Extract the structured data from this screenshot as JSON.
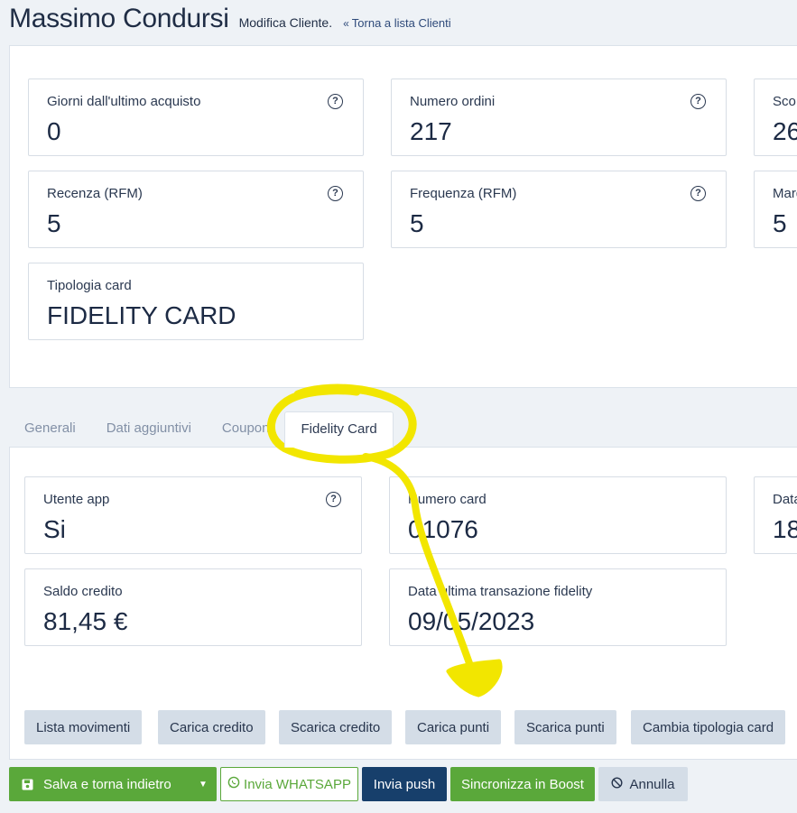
{
  "header": {
    "title": "Massimo Condursi",
    "subtitle": "Modifica Cliente.",
    "back_link": "Torna a lista Clienti",
    "back_icon": "«"
  },
  "summary_cards": [
    {
      "label": "Giorni dall'ultimo acquisto",
      "value": "0",
      "help": true
    },
    {
      "label": "Numero ordini",
      "value": "217",
      "help": true
    },
    {
      "label": "Sco",
      "value": "26"
    },
    {
      "label": "Recenza (RFM)",
      "value": "5",
      "help": true
    },
    {
      "label": "Frequenza (RFM)",
      "value": "5",
      "help": true
    },
    {
      "label": "Marg",
      "value": "5"
    },
    {
      "label": "Tipologia card",
      "value": "FIDELITY CARD"
    }
  ],
  "tabs": [
    {
      "label": "Generali"
    },
    {
      "label": "Dati aggiuntivi"
    },
    {
      "label": "Coupon"
    },
    {
      "label": "Fidelity Card",
      "active": true
    }
  ],
  "fidelity_cards": [
    {
      "label": "Utente app",
      "value": "Si",
      "help": true
    },
    {
      "label": "Numero card",
      "value": "01076"
    },
    {
      "label": "Data",
      "value": "18"
    },
    {
      "label": "Saldo credito",
      "value": "81,45 €"
    },
    {
      "label": "Data ultima transazione fidelity",
      "value": "09/05/2023"
    }
  ],
  "actions": [
    "Lista movimenti",
    "Carica credito",
    "Scarica credito",
    "Carica punti",
    "Scarica punti",
    "Cambia tipologia card"
  ],
  "footer": {
    "save": "Salva e torna indietro",
    "whatsapp": "Invia WHATSAPP",
    "push": "Invia push",
    "sync": "Sincronizza in Boost",
    "cancel": "Annulla"
  },
  "colors": {
    "green": "#5aa83a",
    "navy": "#173f6b",
    "annotation": "#f2e600",
    "button_gray": "#d4dde7"
  },
  "annotation": {
    "type": "hand-drawn circle with arrow",
    "target": "Fidelity Card tab → Carica punti"
  },
  "help_icon": "?"
}
